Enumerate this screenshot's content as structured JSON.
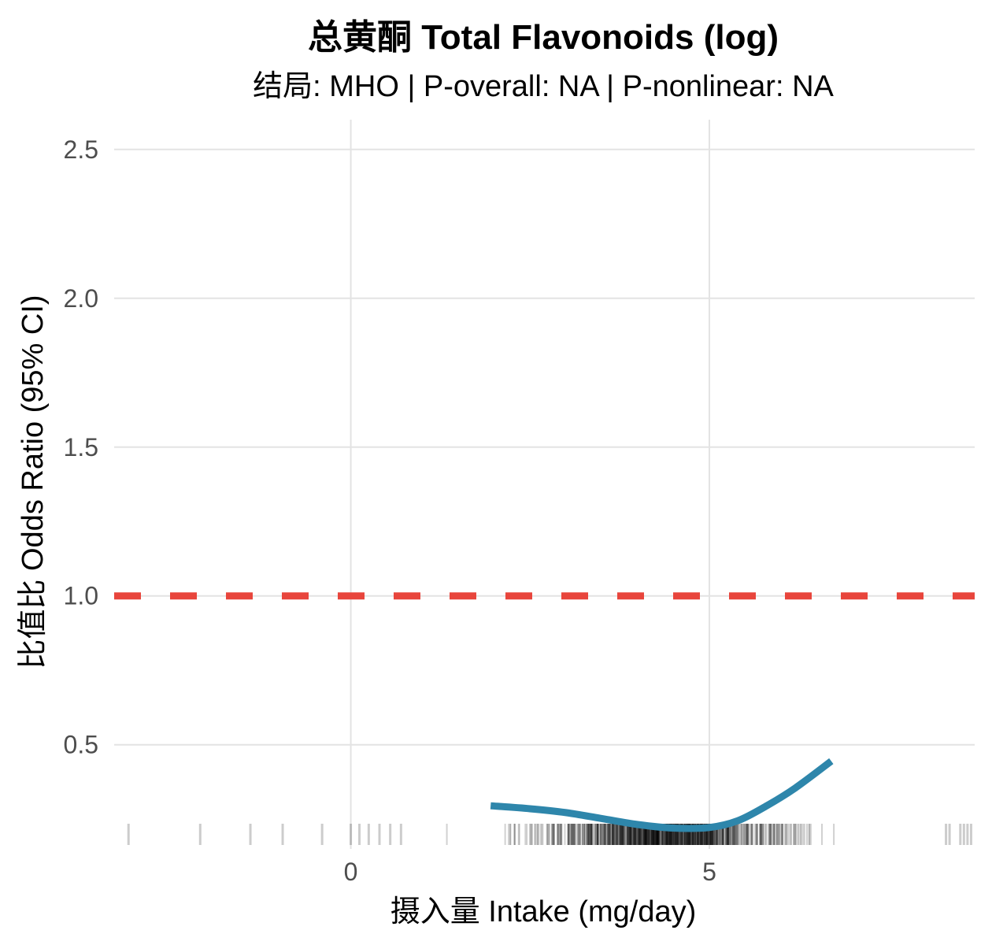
{
  "chart_data": {
    "type": "line",
    "title": "总黄酮 Total Flavonoids (log)",
    "subtitle": "结局: MHO | P-overall: NA | P-nonlinear: NA",
    "xlabel": "摄入量 Intake (mg/day)",
    "ylabel": "比值比 Odds Ratio (95% CI)",
    "xlim": [
      -3.3,
      8.7
    ],
    "ylim": [
      0.15,
      2.6
    ],
    "x_ticks": [
      0,
      5
    ],
    "x_tick_labels": [
      "0",
      "5"
    ],
    "y_ticks": [
      0.5,
      1.0,
      1.5,
      2.0,
      2.5
    ],
    "y_tick_labels": [
      "0.5",
      "1.0",
      "1.5",
      "2.0",
      "2.5"
    ],
    "grid": true,
    "reference_line": {
      "y": 1.0,
      "style": "dashed",
      "color": "#e8453c"
    },
    "series": [
      {
        "color": "#2e86ab",
        "x": [
          1.95,
          2.5,
          3.0,
          3.5,
          4.0,
          4.5,
          5.0,
          5.4,
          5.8,
          6.2,
          6.7
        ],
        "y": [
          0.295,
          0.285,
          0.272,
          0.252,
          0.232,
          0.22,
          0.222,
          0.245,
          0.295,
          0.355,
          0.445
        ]
      }
    ],
    "rug": {
      "color": "#000000",
      "sparse_x": [
        -3.1,
        -2.1,
        -1.4,
        -0.95,
        -0.4,
        0.0,
        0.12,
        0.25,
        0.4,
        0.55,
        0.7,
        8.3,
        8.55,
        8.65,
        8.6,
        8.35,
        8.5
      ],
      "dense_range": [
        0.8,
        7.9
      ]
    }
  }
}
